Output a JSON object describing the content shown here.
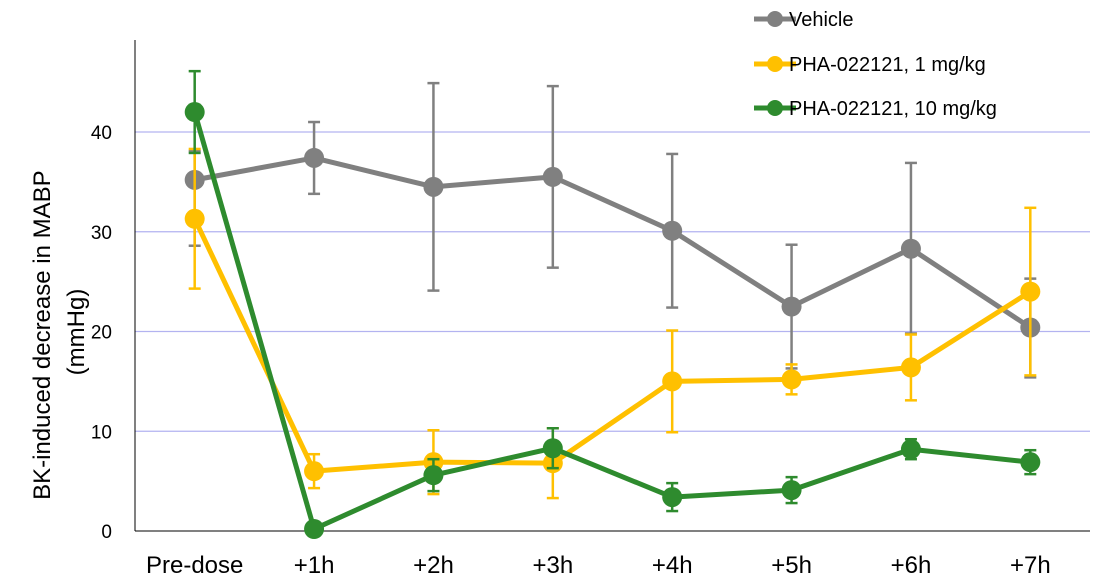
{
  "chart_data": {
    "type": "line",
    "title": "",
    "xlabel": "",
    "ylabel": "BK-induced decrease in MABP (mmHg)",
    "ylabel_lines": [
      "BK-induced decrease in MABP",
      "(mmHg)"
    ],
    "categories": [
      "Pre-dose",
      "+1h",
      "+2h",
      "+3h",
      "+4h",
      "+5h",
      "+6h",
      "+7h"
    ],
    "ylim": [
      0,
      40
    ],
    "yticks": [
      0,
      10,
      20,
      30,
      40
    ],
    "y_tick_labels": [
      "0",
      "10",
      "20",
      "30",
      "40"
    ],
    "grid": true,
    "legend_position": "top-right",
    "series": [
      {
        "name": "Vehicle",
        "color": "#808080",
        "values": [
          35.2,
          37.4,
          34.5,
          35.5,
          30.1,
          22.5,
          28.3,
          20.4
        ],
        "err_low": [
          28.6,
          33.8,
          24.1,
          26.4,
          22.4,
          16.3,
          19.8,
          15.4
        ],
        "err_high": [
          38.1,
          41.0,
          44.9,
          44.6,
          37.8,
          28.7,
          36.9,
          25.3
        ]
      },
      {
        "name": "PHA-022121, 1 mg/kg",
        "color": "#FFC000",
        "values": [
          31.3,
          6.0,
          6.9,
          6.8,
          15.0,
          15.2,
          16.4,
          24.0
        ],
        "err_low": [
          24.3,
          4.3,
          3.7,
          3.3,
          9.9,
          13.7,
          13.1,
          15.6
        ],
        "err_high": [
          38.3,
          7.7,
          10.1,
          10.3,
          20.1,
          16.7,
          19.7,
          32.4
        ]
      },
      {
        "name": "PHA-022121, 10 mg/kg",
        "color": "#2E8B2E",
        "values": [
          42.0,
          0.2,
          5.6,
          8.3,
          3.4,
          4.1,
          8.2,
          6.9
        ],
        "err_low": [
          37.9,
          0.0,
          4.0,
          6.3,
          2.0,
          2.8,
          7.2,
          5.7
        ],
        "err_high": [
          46.1,
          0.4,
          7.2,
          10.3,
          4.8,
          5.4,
          9.2,
          8.1
        ]
      }
    ]
  }
}
